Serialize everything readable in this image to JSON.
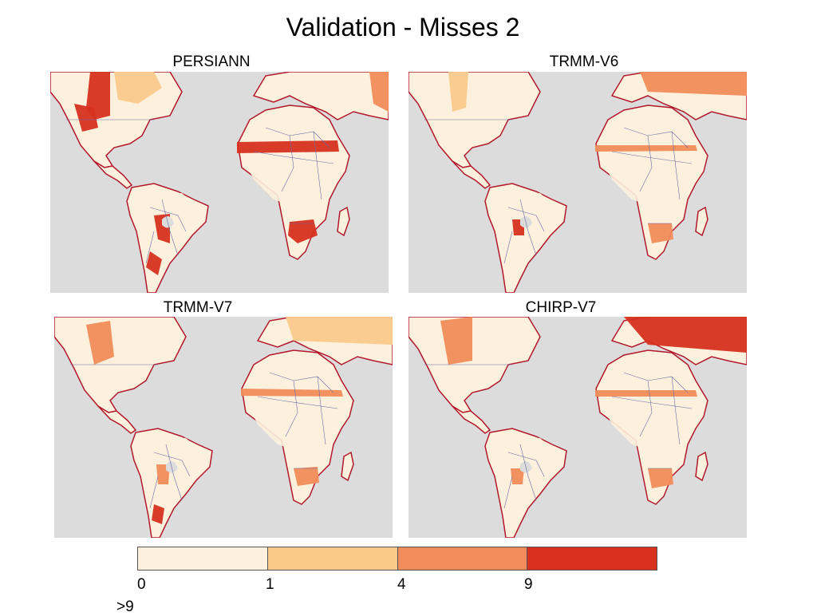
{
  "title": "Validation - Misses 2",
  "panels": [
    {
      "title": "PERSIANN",
      "intensity": "high"
    },
    {
      "title": "TRMM-V6",
      "intensity": "medium"
    },
    {
      "title": "TRMM-V7",
      "intensity": "medium"
    },
    {
      "title": "CHIRP-V7",
      "intensity": "medium-high"
    }
  ],
  "legend": {
    "colors": [
      "#fdf0dc",
      "#fbc98a",
      "#f28c5a",
      "#d7301f"
    ],
    "tick_labels": [
      "0",
      "1",
      "4",
      "9"
    ],
    "extra_label": ">9"
  },
  "colors": {
    "ocean": "#dcdcdc",
    "coast": "#b2182b",
    "borders": "#6a6aa8",
    "land_low": "#fdf0dc"
  }
}
